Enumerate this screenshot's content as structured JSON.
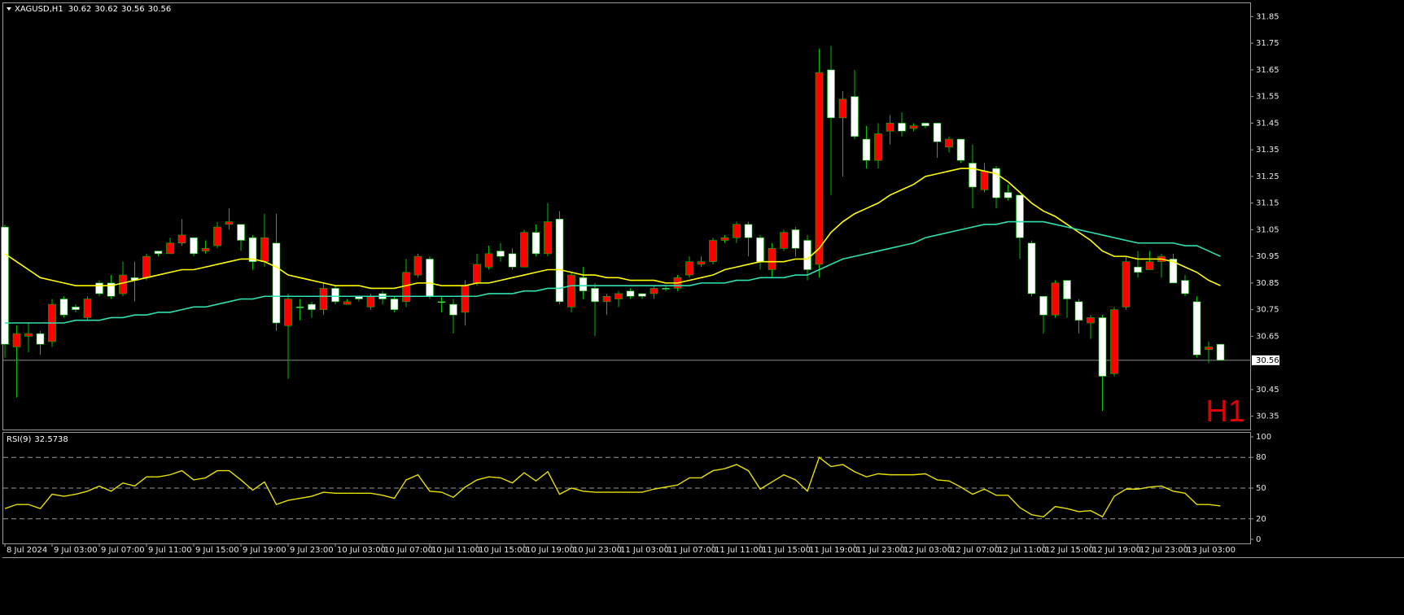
{
  "chart_data": {
    "type": "candlestick",
    "symbol": "XAGUSD,H1",
    "header_ohlc": [
      30.62,
      30.62,
      30.56,
      30.56
    ],
    "watermark": "H1",
    "up_color": "#ff0000",
    "down_color": "#ffffff",
    "wick_color": "#00c000",
    "last_price": 30.56,
    "last_price_color": "#8a8a8a",
    "ylim": [
      30.3,
      31.9
    ],
    "yticks": [
      31.85,
      31.75,
      31.65,
      31.55,
      31.45,
      31.35,
      31.25,
      31.15,
      31.05,
      30.95,
      30.85,
      30.75,
      30.65,
      30.45,
      30.35
    ],
    "grid": false,
    "categories": [
      "8 Jul 2024",
      null,
      null,
      null,
      "9 Jul 03:00",
      null,
      null,
      null,
      "9 Jul 07:00",
      null,
      null,
      null,
      "9 Jul 11:00",
      null,
      null,
      null,
      "9 Jul 15:00",
      null,
      null,
      null,
      "9 Jul 19:00",
      null,
      null,
      null,
      "9 Jul 23:00",
      null,
      null,
      null,
      "10 Jul 03:00",
      null,
      null,
      null,
      "10 Jul 07:00",
      null,
      null,
      null,
      "10 Jul 11:00",
      null,
      null,
      null,
      "10 Jul 15:00",
      null,
      null,
      null,
      "10 Jul 19:00",
      null,
      null,
      null,
      "10 Jul 23:00",
      null,
      null,
      null,
      "11 Jul 03:00",
      null,
      null,
      null,
      "11 Jul 07:00",
      null,
      null,
      null,
      "11 Jul 11:00",
      null,
      null,
      null,
      "11 Jul 15:00",
      null,
      null,
      null,
      "11 Jul 19:00",
      null,
      null,
      null,
      "11 Jul 23:00",
      null,
      null,
      null,
      "12 Jul 03:00",
      null,
      null,
      null,
      "12 Jul 07:00",
      null,
      null,
      null,
      "12 Jul 11:00",
      null,
      null,
      null,
      "12 Jul 15:00",
      null,
      null,
      null,
      "12 Jul 19:00",
      null,
      null,
      null,
      "12 Jul 23:00",
      null,
      null,
      null,
      "13 Jul 03:00",
      null,
      null,
      null
    ],
    "candles": [
      [
        31.06,
        31.07,
        30.57,
        30.62
      ],
      [
        30.61,
        30.69,
        30.42,
        30.66
      ],
      [
        30.65,
        30.7,
        30.59,
        30.66
      ],
      [
        30.66,
        30.67,
        30.58,
        30.62
      ],
      [
        30.63,
        30.79,
        30.61,
        30.77
      ],
      [
        30.79,
        30.8,
        30.72,
        30.73
      ],
      [
        30.76,
        30.77,
        30.74,
        30.75
      ],
      [
        30.72,
        30.8,
        30.71,
        30.79
      ],
      [
        30.85,
        30.86,
        30.8,
        30.81
      ],
      [
        30.85,
        30.88,
        30.79,
        30.8
      ],
      [
        30.81,
        30.93,
        30.8,
        30.88
      ],
      [
        30.87,
        30.93,
        30.78,
        30.86
      ],
      [
        30.87,
        30.96,
        30.86,
        30.95
      ],
      [
        30.97,
        30.97,
        30.95,
        30.96
      ],
      [
        30.96,
        31.02,
        30.96,
        31.0
      ],
      [
        31.0,
        31.09,
        30.99,
        31.03
      ],
      [
        31.02,
        31.02,
        30.95,
        30.96
      ],
      [
        30.97,
        31.01,
        30.96,
        30.98
      ],
      [
        30.99,
        31.08,
        30.98,
        31.06
      ],
      [
        31.07,
        31.13,
        31.05,
        31.08
      ],
      [
        31.07,
        31.07,
        30.97,
        31.01
      ],
      [
        31.02,
        31.03,
        30.9,
        30.93
      ],
      [
        30.93,
        31.11,
        30.91,
        31.02
      ],
      [
        31.0,
        31.11,
        30.67,
        30.7
      ],
      [
        30.69,
        30.81,
        30.49,
        30.79
      ],
      [
        30.76,
        30.79,
        30.71,
        30.76
      ],
      [
        30.77,
        30.78,
        30.72,
        30.75
      ],
      [
        30.75,
        30.85,
        30.73,
        30.83
      ],
      [
        30.83,
        30.84,
        30.77,
        30.78
      ],
      [
        30.77,
        30.79,
        30.77,
        30.78
      ],
      [
        30.8,
        30.8,
        30.78,
        30.79
      ],
      [
        30.76,
        30.81,
        30.75,
        30.8
      ],
      [
        30.81,
        30.82,
        30.77,
        30.79
      ],
      [
        30.79,
        30.8,
        30.74,
        30.75
      ],
      [
        30.78,
        30.94,
        30.76,
        30.89
      ],
      [
        30.88,
        30.96,
        30.87,
        30.95
      ],
      [
        30.94,
        30.95,
        30.79,
        30.8
      ],
      [
        30.78,
        30.8,
        30.74,
        30.78
      ],
      [
        30.77,
        30.79,
        30.66,
        30.73
      ],
      [
        30.74,
        30.86,
        30.69,
        30.84
      ],
      [
        30.85,
        30.96,
        30.84,
        30.92
      ],
      [
        30.91,
        30.99,
        30.9,
        30.96
      ],
      [
        30.97,
        31.0,
        30.93,
        30.95
      ],
      [
        30.96,
        30.98,
        30.9,
        30.91
      ],
      [
        30.91,
        31.05,
        30.91,
        31.04
      ],
      [
        31.04,
        31.07,
        30.95,
        30.96
      ],
      [
        30.96,
        31.15,
        30.95,
        31.08
      ],
      [
        31.09,
        31.12,
        30.77,
        30.78
      ],
      [
        30.76,
        30.89,
        30.74,
        30.88
      ],
      [
        30.87,
        30.91,
        30.79,
        30.82
      ],
      [
        30.83,
        30.85,
        30.65,
        30.78
      ],
      [
        30.78,
        30.81,
        30.73,
        30.8
      ],
      [
        30.79,
        30.82,
        30.76,
        30.81
      ],
      [
        30.82,
        30.83,
        30.79,
        30.8
      ],
      [
        30.81,
        30.81,
        30.79,
        30.8
      ],
      [
        30.81,
        30.84,
        30.79,
        30.83
      ],
      [
        30.83,
        30.84,
        30.82,
        30.83
      ],
      [
        30.83,
        30.88,
        30.82,
        30.87
      ],
      [
        30.88,
        30.95,
        30.87,
        30.93
      ],
      [
        30.92,
        30.95,
        30.91,
        30.93
      ],
      [
        30.93,
        31.02,
        30.92,
        31.01
      ],
      [
        31.01,
        31.03,
        31.0,
        31.02
      ],
      [
        31.02,
        31.08,
        31.0,
        31.07
      ],
      [
        31.07,
        31.08,
        30.95,
        31.02
      ],
      [
        31.02,
        31.03,
        30.9,
        30.93
      ],
      [
        30.9,
        31.0,
        30.87,
        30.98
      ],
      [
        30.98,
        31.05,
        30.97,
        31.04
      ],
      [
        31.05,
        31.06,
        30.95,
        30.98
      ],
      [
        31.01,
        31.03,
        30.86,
        30.9
      ],
      [
        30.92,
        31.73,
        30.87,
        31.64
      ],
      [
        31.65,
        31.74,
        31.18,
        31.47
      ],
      [
        31.47,
        31.57,
        31.25,
        31.54
      ],
      [
        31.55,
        31.65,
        31.39,
        31.4
      ],
      [
        31.39,
        31.44,
        31.28,
        31.31
      ],
      [
        31.31,
        31.45,
        31.28,
        31.41
      ],
      [
        31.42,
        31.48,
        31.37,
        31.45
      ],
      [
        31.45,
        31.49,
        31.4,
        31.42
      ],
      [
        31.43,
        31.45,
        31.42,
        31.44
      ],
      [
        31.45,
        31.45,
        31.43,
        31.44
      ],
      [
        31.45,
        31.45,
        31.32,
        31.38
      ],
      [
        31.36,
        31.4,
        31.34,
        31.39
      ],
      [
        31.39,
        31.39,
        31.3,
        31.31
      ],
      [
        31.3,
        31.37,
        31.13,
        31.21
      ],
      [
        31.2,
        31.3,
        31.19,
        31.27
      ],
      [
        31.28,
        31.29,
        31.13,
        31.17
      ],
      [
        31.19,
        31.22,
        31.16,
        31.17
      ],
      [
        31.18,
        31.18,
        30.94,
        31.02
      ],
      [
        31.0,
        31.01,
        30.8,
        30.81
      ],
      [
        30.8,
        30.8,
        30.66,
        30.73
      ],
      [
        30.73,
        30.86,
        30.72,
        30.85
      ],
      [
        30.86,
        30.86,
        30.72,
        30.79
      ],
      [
        30.78,
        30.79,
        30.66,
        30.71
      ],
      [
        30.7,
        30.73,
        30.64,
        30.72
      ],
      [
        30.72,
        30.73,
        30.37,
        30.5
      ],
      [
        30.51,
        30.76,
        30.5,
        30.75
      ],
      [
        30.76,
        30.95,
        30.75,
        30.93
      ],
      [
        30.91,
        30.97,
        30.87,
        30.89
      ],
      [
        30.9,
        30.97,
        30.9,
        30.93
      ],
      [
        30.93,
        30.96,
        30.87,
        30.95
      ],
      [
        30.94,
        30.96,
        30.85,
        30.85
      ],
      [
        30.86,
        30.88,
        30.8,
        30.81
      ],
      [
        30.78,
        30.8,
        30.57,
        30.58
      ],
      [
        30.6,
        30.63,
        30.55,
        30.61
      ],
      [
        30.62,
        30.62,
        30.56,
        30.56
      ]
    ],
    "overlays": [
      {
        "color": "#ffff00",
        "values": [
          30.96,
          30.93,
          30.9,
          30.87,
          30.86,
          30.85,
          30.84,
          30.84,
          30.84,
          30.84,
          30.85,
          30.86,
          30.87,
          30.88,
          30.89,
          30.9,
          30.9,
          30.91,
          30.92,
          30.93,
          30.94,
          30.94,
          30.93,
          30.91,
          30.88,
          30.87,
          30.86,
          30.85,
          30.84,
          30.84,
          30.84,
          30.83,
          30.83,
          30.83,
          30.84,
          30.85,
          30.85,
          30.84,
          30.84,
          30.84,
          30.85,
          30.85,
          30.86,
          30.87,
          30.88,
          30.89,
          30.9,
          30.9,
          30.89,
          30.88,
          30.88,
          30.87,
          30.87,
          30.86,
          30.86,
          30.86,
          30.85,
          30.85,
          30.86,
          30.87,
          30.88,
          30.9,
          30.91,
          30.92,
          30.93,
          30.93,
          30.93,
          30.94,
          30.94,
          30.98,
          31.04,
          31.08,
          31.11,
          31.13,
          31.15,
          31.18,
          31.2,
          31.22,
          31.25,
          31.26,
          31.27,
          31.28,
          31.28,
          31.27,
          31.26,
          31.23,
          31.19,
          31.15,
          31.12,
          31.1,
          31.07,
          31.04,
          31.01,
          30.97,
          30.95,
          30.95,
          30.94,
          30.94,
          30.94,
          30.93,
          30.91,
          30.89,
          30.86,
          30.84
        ]
      },
      {
        "color": "#30e0b0",
        "values": [
          30.7,
          30.7,
          30.7,
          30.7,
          30.7,
          30.7,
          30.71,
          30.71,
          30.71,
          30.72,
          30.72,
          30.73,
          30.73,
          30.74,
          30.74,
          30.75,
          30.76,
          30.76,
          30.77,
          30.78,
          30.79,
          30.79,
          30.8,
          30.8,
          30.8,
          30.8,
          30.8,
          30.8,
          30.8,
          30.8,
          30.8,
          30.8,
          30.8,
          30.8,
          30.8,
          30.8,
          30.8,
          30.8,
          30.8,
          30.8,
          30.8,
          30.81,
          30.81,
          30.81,
          30.82,
          30.82,
          30.83,
          30.83,
          30.84,
          30.84,
          30.84,
          30.84,
          30.84,
          30.84,
          30.84,
          30.84,
          30.84,
          30.84,
          30.84,
          30.85,
          30.85,
          30.85,
          30.86,
          30.86,
          30.87,
          30.87,
          30.87,
          30.88,
          30.88,
          30.9,
          30.92,
          30.94,
          30.95,
          30.96,
          30.97,
          30.98,
          30.99,
          31.0,
          31.02,
          31.03,
          31.04,
          31.05,
          31.06,
          31.07,
          31.07,
          31.08,
          31.08,
          31.08,
          31.08,
          31.07,
          31.06,
          31.05,
          31.04,
          31.03,
          31.02,
          31.01,
          31.0,
          31.0,
          31.0,
          31.0,
          30.99,
          30.99,
          30.97,
          30.95
        ]
      }
    ],
    "rsi": {
      "label": "RSI(9)",
      "current": 32.5738,
      "color": "#e8e000",
      "ylim": [
        -4,
        104
      ],
      "yticks": [
        100,
        80,
        50,
        20,
        0
      ],
      "levels": [
        80,
        50,
        20
      ],
      "values": [
        30,
        34,
        34,
        30,
        44,
        42,
        44,
        47,
        52,
        47,
        55,
        52,
        61,
        61,
        63,
        67,
        58,
        60,
        67,
        67,
        58,
        48,
        56,
        34,
        38,
        40,
        42,
        46,
        45,
        45,
        45,
        45,
        43,
        40,
        58,
        63,
        47,
        46,
        41,
        51,
        58,
        61,
        60,
        55,
        65,
        57,
        66,
        44,
        50,
        47,
        46,
        46,
        46,
        46,
        46,
        49,
        51,
        53,
        60,
        60,
        67,
        69,
        73,
        67,
        49,
        56,
        63,
        58,
        47,
        80,
        71,
        73,
        66,
        61,
        64,
        63,
        63,
        63,
        64,
        58,
        57,
        51,
        44,
        49,
        43,
        43,
        31,
        24,
        22,
        32,
        30,
        27,
        28,
        22,
        42,
        49,
        49,
        51,
        52,
        47,
        45,
        34,
        34,
        32.57
      ]
    }
  }
}
